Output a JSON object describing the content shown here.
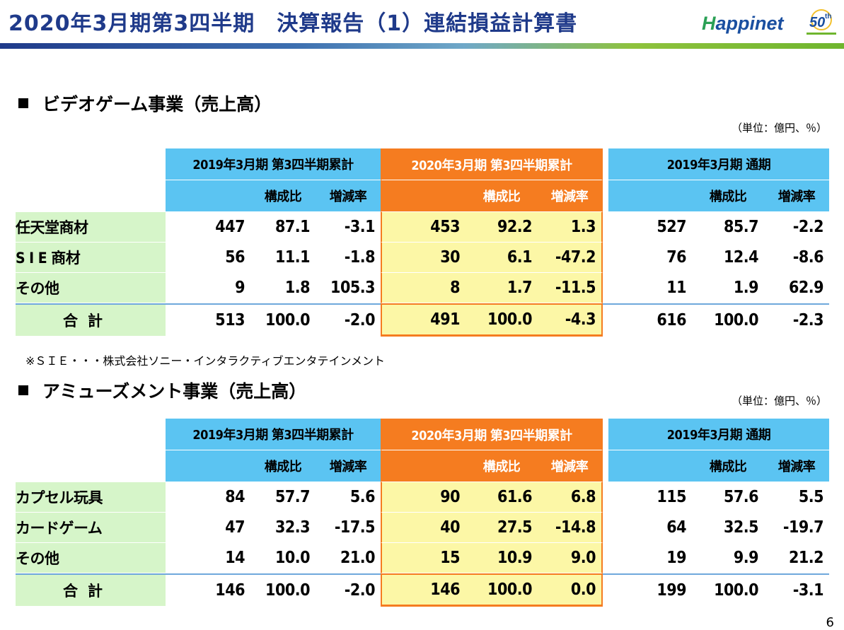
{
  "header": {
    "title": "2020年3月期第3四半期　決算報告（1）連結損益計算書",
    "logo_text": "Happinet",
    "anniversary_badge": "50th"
  },
  "colors": {
    "title": "#1f3a8a",
    "header_blue": "#5bc4f2",
    "header_orange": "#f57c20",
    "label_green": "#d6f5c9",
    "highlight_yellow": "#fcf7a6"
  },
  "section1": {
    "heading": "ビデオゲーム事業（売上高）",
    "unit": "（単位：億円、％）",
    "periods": [
      "2019年3月期 第3四半期累計",
      "2020年3月期 第3四半期累計",
      "2019年3月期 通期"
    ],
    "sub_headers": [
      "構成比",
      "増減率"
    ],
    "rows": [
      {
        "label": "任天堂商材",
        "v": [
          "447",
          "87.1",
          "-3.1",
          "453",
          "92.2",
          "1.3",
          "527",
          "85.7",
          "-2.2"
        ]
      },
      {
        "label": "S I E 商材",
        "v": [
          "56",
          "11.1",
          "-1.8",
          "30",
          "6.1",
          "-47.2",
          "76",
          "12.4",
          "-8.6"
        ]
      },
      {
        "label": "その他",
        "v": [
          "9",
          "1.8",
          "105.3",
          "8",
          "1.7",
          "-11.5",
          "11",
          "1.9",
          "62.9"
        ]
      },
      {
        "label": "合計",
        "v": [
          "513",
          "100.0",
          "-2.0",
          "491",
          "100.0",
          "-4.3",
          "616",
          "100.0",
          "-2.3"
        ]
      }
    ],
    "note": "※ＳＩＥ・・・株式会社ソニー・インタラクティブエンタテインメント"
  },
  "section2": {
    "heading": "アミューズメント事業（売上高）",
    "unit": "（単位：億円、％）",
    "periods": [
      "2019年3月期 第3四半期累計",
      "2020年3月期 第3四半期累計",
      "2019年3月期 通期"
    ],
    "sub_headers": [
      "構成比",
      "増減率"
    ],
    "rows": [
      {
        "label": "カプセル玩具",
        "v": [
          "84",
          "57.7",
          "5.6",
          "90",
          "61.6",
          "6.8",
          "115",
          "57.6",
          "5.5"
        ]
      },
      {
        "label": "カードゲーム",
        "v": [
          "47",
          "32.3",
          "-17.5",
          "40",
          "27.5",
          "-14.8",
          "64",
          "32.5",
          "-19.7"
        ]
      },
      {
        "label": "その他",
        "v": [
          "14",
          "10.0",
          "21.0",
          "15",
          "10.9",
          "9.0",
          "19",
          "9.9",
          "21.2"
        ]
      },
      {
        "label": "合計",
        "v": [
          "146",
          "100.0",
          "-2.0",
          "146",
          "100.0",
          "0.0",
          "199",
          "100.0",
          "-3.1"
        ]
      }
    ]
  },
  "page_number": "6"
}
